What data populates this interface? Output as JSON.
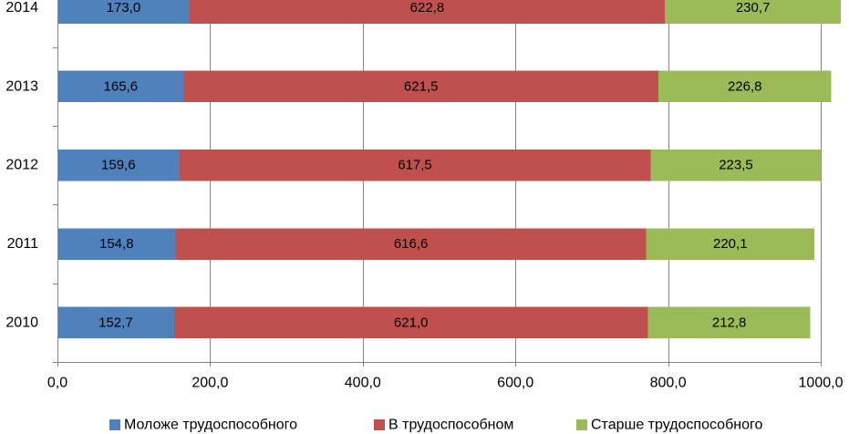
{
  "chart_data": {
    "type": "bar",
    "orientation": "horizontal",
    "stacked": true,
    "categories": [
      "2014",
      "2013",
      "2012",
      "2011",
      "2010"
    ],
    "series": [
      {
        "name": "Моложе трудоспособного",
        "color": "#4F81BD",
        "values": [
          173.0,
          165.6,
          159.6,
          154.8,
          152.7
        ],
        "labels": [
          "173,0",
          "165,6",
          "159,6",
          "154,8",
          "152,7"
        ]
      },
      {
        "name": "В трудоспособном",
        "color": "#C0504D",
        "values": [
          622.8,
          621.5,
          617.5,
          616.6,
          621.0
        ],
        "labels": [
          "622,8",
          "621,5",
          "617,5",
          "616,6",
          "621,0"
        ]
      },
      {
        "name": "Старше трудоспособного",
        "color": "#9BBB59",
        "values": [
          230.7,
          226.8,
          223.5,
          220.1,
          212.8
        ],
        "labels": [
          "230,7",
          "226,8",
          "223,5",
          "220,1",
          "212,8"
        ]
      }
    ],
    "xlim": [
      0,
      1000
    ],
    "xticks": [
      0,
      200,
      400,
      600,
      800,
      1000
    ],
    "xtick_labels": [
      "0,0",
      "200,0",
      "400,0",
      "600,0",
      "800,0",
      "1000,0"
    ],
    "title": "",
    "xlabel": "",
    "ylabel": "",
    "grid": "vertical",
    "legend": "bottom"
  }
}
